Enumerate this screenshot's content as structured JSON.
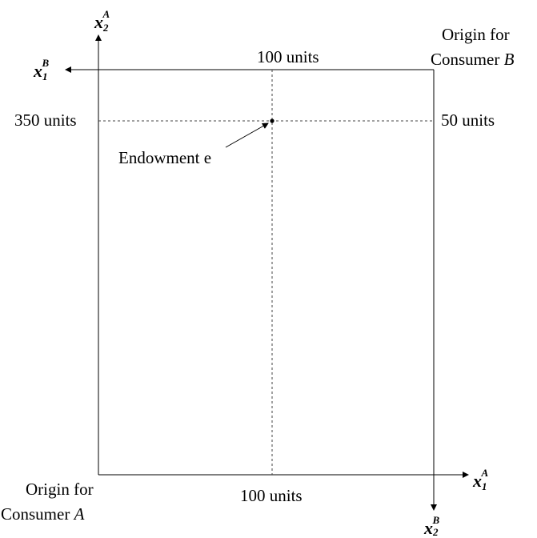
{
  "diagram": {
    "colors": {
      "line": "#000000",
      "guide": "#444444",
      "background": "#ffffff"
    },
    "axes": {
      "consumer_a_vertical": {
        "var": "x",
        "sub": "2",
        "sup": "A"
      },
      "consumer_b_horizontal": {
        "var": "x",
        "sub": "1",
        "sup": "B"
      },
      "consumer_a_horizontal": {
        "var": "x",
        "sub": "1",
        "sup": "A"
      },
      "consumer_b_vertical": {
        "var": "x",
        "sub": "2",
        "sup": "B"
      }
    },
    "labels": {
      "top_units": "100 units",
      "left_units": "350 units",
      "right_units": "50 units",
      "bottom_units": "100 units",
      "endowment": "Endowment e"
    },
    "origins": {
      "a": {
        "line1": "Origin for",
        "line2_prefix": "Consumer ",
        "line2_letter": "A"
      },
      "b": {
        "line1": "Origin for",
        "line2_prefix": "Consumer ",
        "line2_letter": "B"
      }
    }
  }
}
